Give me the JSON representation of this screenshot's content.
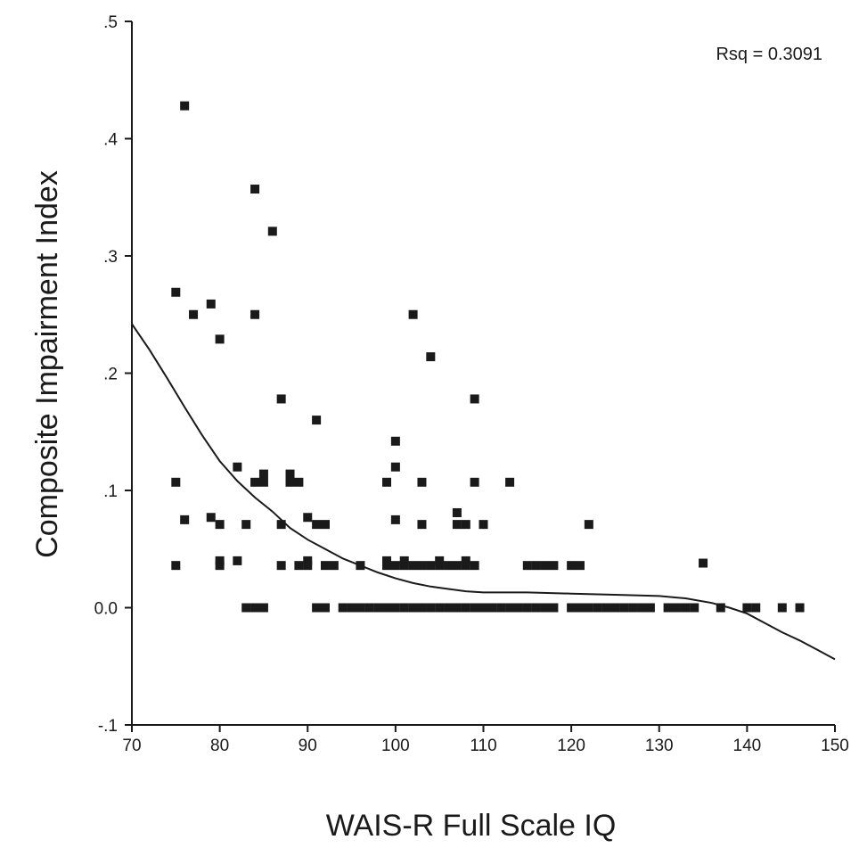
{
  "chart_data": {
    "type": "scatter",
    "title": "",
    "xlabel": "WAIS-R Full Scale IQ",
    "ylabel": "Composite Impairment Index",
    "xlim": [
      70,
      150
    ],
    "ylim": [
      -0.1,
      0.5
    ],
    "x_ticks": [
      70,
      80,
      90,
      100,
      110,
      120,
      130,
      140,
      150
    ],
    "x_tick_labels": [
      "70",
      "80",
      "90",
      "100",
      "110",
      "120",
      "130",
      "140",
      "150"
    ],
    "y_ticks": [
      -0.1,
      0.0,
      0.1,
      0.2,
      0.3,
      0.4,
      0.5
    ],
    "y_tick_labels": [
      "-.1",
      "0.0",
      ".1",
      ".2",
      ".3",
      ".4",
      ".5"
    ],
    "grid": false,
    "annotation": "Rsq = 0.3091",
    "annotation_position": "top-right",
    "points": [
      [
        76,
        0.428
      ],
      [
        84,
        0.357
      ],
      [
        86,
        0.321
      ],
      [
        75,
        0.269
      ],
      [
        79,
        0.259
      ],
      [
        77,
        0.25
      ],
      [
        84,
        0.25
      ],
      [
        80,
        0.229
      ],
      [
        87,
        0.178
      ],
      [
        91,
        0.16
      ],
      [
        102,
        0.25
      ],
      [
        104,
        0.214
      ],
      [
        109,
        0.178
      ],
      [
        100,
        0.142
      ],
      [
        82,
        0.12
      ],
      [
        100,
        0.12
      ],
      [
        85,
        0.114
      ],
      [
        88,
        0.114
      ],
      [
        75,
        0.107
      ],
      [
        84,
        0.107
      ],
      [
        85,
        0.107
      ],
      [
        88,
        0.107
      ],
      [
        89,
        0.107
      ],
      [
        99,
        0.107
      ],
      [
        103,
        0.107
      ],
      [
        109,
        0.107
      ],
      [
        113,
        0.107
      ],
      [
        107,
        0.081
      ],
      [
        76,
        0.075
      ],
      [
        79,
        0.077
      ],
      [
        90,
        0.077
      ],
      [
        100,
        0.075
      ],
      [
        80,
        0.071
      ],
      [
        83,
        0.071
      ],
      [
        87,
        0.071
      ],
      [
        91,
        0.071
      ],
      [
        92,
        0.071
      ],
      [
        103,
        0.071
      ],
      [
        107,
        0.071
      ],
      [
        108,
        0.071
      ],
      [
        110,
        0.071
      ],
      [
        122,
        0.071
      ],
      [
        75,
        0.036
      ],
      [
        80,
        0.036
      ],
      [
        80,
        0.04
      ],
      [
        82,
        0.04
      ],
      [
        87,
        0.036
      ],
      [
        89,
        0.036
      ],
      [
        90,
        0.036
      ],
      [
        90,
        0.04
      ],
      [
        92,
        0.036
      ],
      [
        93,
        0.036
      ],
      [
        96,
        0.036
      ],
      [
        99,
        0.036
      ],
      [
        99,
        0.04
      ],
      [
        100,
        0.036
      ],
      [
        101,
        0.036
      ],
      [
        101,
        0.04
      ],
      [
        102,
        0.036
      ],
      [
        103,
        0.036
      ],
      [
        104,
        0.036
      ],
      [
        105,
        0.036
      ],
      [
        105,
        0.04
      ],
      [
        106,
        0.036
      ],
      [
        107,
        0.036
      ],
      [
        108,
        0.036
      ],
      [
        108,
        0.04
      ],
      [
        109,
        0.036
      ],
      [
        115,
        0.036
      ],
      [
        116,
        0.036
      ],
      [
        117,
        0.036
      ],
      [
        118,
        0.036
      ],
      [
        120,
        0.036
      ],
      [
        121,
        0.036
      ],
      [
        135,
        0.038
      ],
      [
        83,
        0.0
      ],
      [
        84,
        0.0
      ],
      [
        85,
        0.0
      ],
      [
        91,
        0.0
      ],
      [
        92,
        0.0
      ],
      [
        94,
        0.0
      ],
      [
        95,
        0.0
      ],
      [
        96,
        0.0
      ],
      [
        97,
        0.0
      ],
      [
        98,
        0.0
      ],
      [
        99,
        0.0
      ],
      [
        100,
        0.0
      ],
      [
        101,
        0.0
      ],
      [
        102,
        0.0
      ],
      [
        103,
        0.0
      ],
      [
        104,
        0.0
      ],
      [
        105,
        0.0
      ],
      [
        106,
        0.0
      ],
      [
        107,
        0.0
      ],
      [
        108,
        0.0
      ],
      [
        109,
        0.0
      ],
      [
        110,
        0.0
      ],
      [
        111,
        0.0
      ],
      [
        112,
        0.0
      ],
      [
        113,
        0.0
      ],
      [
        114,
        0.0
      ],
      [
        115,
        0.0
      ],
      [
        116,
        0.0
      ],
      [
        117,
        0.0
      ],
      [
        118,
        0.0
      ],
      [
        120,
        0.0
      ],
      [
        121,
        0.0
      ],
      [
        122,
        0.0
      ],
      [
        123,
        0.0
      ],
      [
        124,
        0.0
      ],
      [
        125,
        0.0
      ],
      [
        126,
        0.0
      ],
      [
        127,
        0.0
      ],
      [
        128,
        0.0
      ],
      [
        129,
        0.0
      ],
      [
        131,
        0.0
      ],
      [
        132,
        0.0
      ],
      [
        133,
        0.0
      ],
      [
        134,
        0.0
      ],
      [
        137,
        0.0
      ],
      [
        140,
        0.0
      ],
      [
        141,
        0.0
      ],
      [
        144,
        0.0
      ],
      [
        146,
        0.0
      ]
    ],
    "fit_line": [
      [
        70,
        0.242
      ],
      [
        72,
        0.22
      ],
      [
        74,
        0.196
      ],
      [
        76,
        0.171
      ],
      [
        78,
        0.147
      ],
      [
        80,
        0.125
      ],
      [
        82,
        0.108
      ],
      [
        84,
        0.094
      ],
      [
        86,
        0.082
      ],
      [
        88,
        0.068
      ],
      [
        90,
        0.058
      ],
      [
        92,
        0.05
      ],
      [
        94,
        0.042
      ],
      [
        96,
        0.036
      ],
      [
        98,
        0.03
      ],
      [
        100,
        0.025
      ],
      [
        102,
        0.021
      ],
      [
        104,
        0.018
      ],
      [
        106,
        0.016
      ],
      [
        108,
        0.014
      ],
      [
        110,
        0.013
      ],
      [
        115,
        0.013
      ],
      [
        120,
        0.012
      ],
      [
        125,
        0.011
      ],
      [
        130,
        0.01
      ],
      [
        133,
        0.008
      ],
      [
        136,
        0.004
      ],
      [
        138,
        0.0
      ],
      [
        140,
        -0.005
      ],
      [
        142,
        -0.013
      ],
      [
        144,
        -0.021
      ],
      [
        146,
        -0.028
      ],
      [
        148,
        -0.036
      ],
      [
        150,
        -0.044
      ]
    ]
  }
}
